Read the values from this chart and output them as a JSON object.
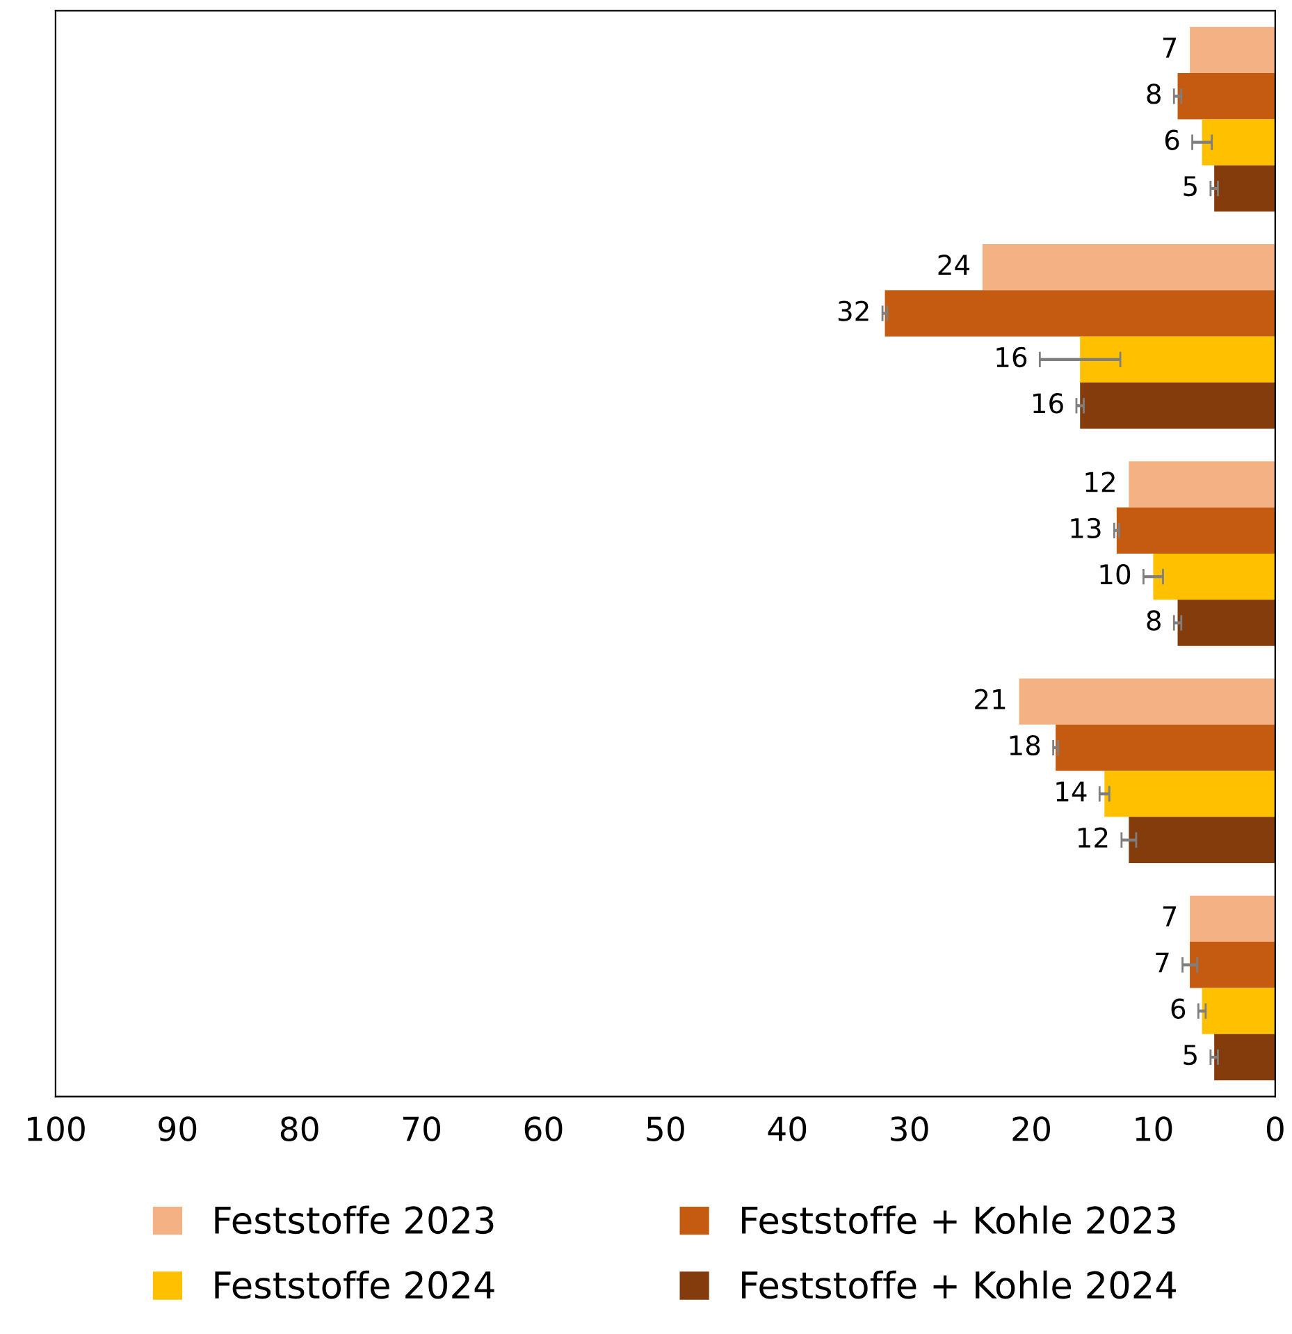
{
  "chart_data": {
    "type": "bar",
    "orientation": "horizontal",
    "categories": [
      null,
      null,
      null,
      null,
      null
    ],
    "series": [
      {
        "name": "Feststoffe 2023",
        "color": "#f4b183",
        "values": [
          7,
          24,
          12,
          21,
          7
        ]
      },
      {
        "name": "Feststoffe + Kohle 2023",
        "color": "#c55a11",
        "values": [
          8,
          32,
          13,
          18,
          7
        ],
        "errors": [
          0.3,
          0.2,
          0.2,
          0.2,
          0.6
        ]
      },
      {
        "name": "Feststoffe 2024",
        "color": "#ffc000",
        "values": [
          6,
          16,
          10,
          14,
          6
        ],
        "errors": [
          0.8,
          3.3,
          0.8,
          0.4,
          0.3
        ]
      },
      {
        "name": "Feststoffe + Kohle 2024",
        "color": "#843c0c",
        "values": [
          5,
          16,
          8,
          12,
          5
        ],
        "errors": [
          0.3,
          0.3,
          0.3,
          0.6,
          0.3
        ]
      }
    ],
    "xlim": [
      100,
      0
    ],
    "xticks": [
      100,
      90,
      80,
      70,
      60,
      50,
      40,
      30,
      20,
      10,
      0
    ],
    "data_labels": true,
    "legend": "bottom",
    "grid": false
  }
}
